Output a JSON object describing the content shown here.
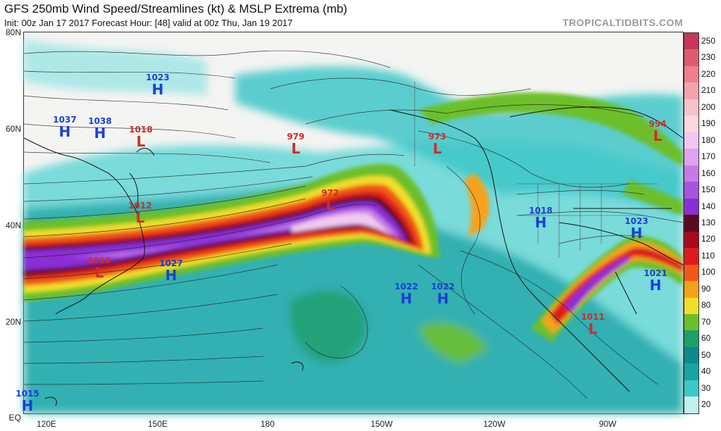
{
  "header": {
    "title": "GFS 250mb Wind Speed/Streamlines (kt) & MSLP Extrema (mb)",
    "subtitle": "Init: 00z Jan 17 2017   Forecast Hour: [48]   valid at 00z Thu, Jan 19 2017",
    "brand": "TROPICALTIDBITS.COM"
  },
  "map": {
    "lat_labels": [
      "80N",
      "60N",
      "40N",
      "20N",
      "EQ"
    ],
    "lon_labels": [
      "120E",
      "150E",
      "180",
      "150W",
      "120W",
      "90W"
    ]
  },
  "pressure_centers": [
    {
      "type": "H",
      "value": "1023"
    },
    {
      "type": "H",
      "value": "1037"
    },
    {
      "type": "H",
      "value": "1038"
    },
    {
      "type": "L",
      "value": "1018"
    },
    {
      "type": "L",
      "value": "979"
    },
    {
      "type": "L",
      "value": "973"
    },
    {
      "type": "L",
      "value": "994"
    },
    {
      "type": "L",
      "value": "972"
    },
    {
      "type": "L",
      "value": "1012"
    },
    {
      "type": "H",
      "value": "1018"
    },
    {
      "type": "H",
      "value": "1023"
    },
    {
      "type": "L",
      "value": "1018"
    },
    {
      "type": "H",
      "value": "1027"
    },
    {
      "type": "H",
      "value": "1022"
    },
    {
      "type": "H",
      "value": "1022"
    },
    {
      "type": "H",
      "value": "1021"
    },
    {
      "type": "L",
      "value": "1011"
    },
    {
      "type": "H",
      "value": "1015"
    }
  ],
  "colorbar": {
    "labels": [
      "250",
      "230",
      "220",
      "210",
      "200",
      "190",
      "180",
      "170",
      "160",
      "150",
      "140",
      "130",
      "120",
      "110",
      "100",
      "90",
      "80",
      "70",
      "60",
      "50",
      "40",
      "30",
      "20"
    ],
    "colors": [
      "#c8375a",
      "#e05a6e",
      "#ee7f8c",
      "#f4a3ad",
      "#f6c3cb",
      "#fbd8e0",
      "#f1c8ef",
      "#dfa3ee",
      "#c57be6",
      "#a655de",
      "#8a2fd6",
      "#5c0a1f",
      "#a8091d",
      "#dc1c1c",
      "#f05a18",
      "#f6a21a",
      "#f0df2a",
      "#6cbf2c",
      "#1f9e6c",
      "#0a8a8c",
      "#19a3a6",
      "#3ec7c8",
      "#bff0f0"
    ]
  }
}
